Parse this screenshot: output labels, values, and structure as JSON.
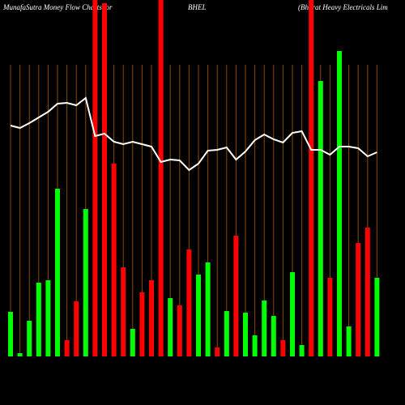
{
  "chart_data": {
    "type": "bar",
    "title": "MunafaSutra  Money Flow  Charts for",
    "symbol": "BHEL",
    "subtitle": "(Bharat Heavy Electricals Lim",
    "background": "#000000",
    "grid_color": "#8b4a00",
    "line_color": "#ffffff",
    "ylim": [
      0,
      440
    ],
    "values": [
      55,
      4,
      44,
      91,
      94,
      207,
      20,
      68,
      182,
      440,
      436,
      238,
      110,
      34,
      79,
      94,
      440,
      72,
      63,
      132,
      101,
      116,
      11,
      56,
      149,
      54,
      26,
      69,
      50,
      20,
      104,
      14,
      440,
      340,
      97,
      377,
      37,
      140,
      159,
      97
    ],
    "colors": [
      "#00ff00",
      "#00ff00",
      "#00ff00",
      "#00ff00",
      "#00ff00",
      "#00ff00",
      "#ff0000",
      "#ff0000",
      "#00ff00",
      "#ff0000",
      "#ff0000",
      "#ff0000",
      "#ff0000",
      "#00ff00",
      "#ff0000",
      "#ff0000",
      "#ff0000",
      "#00ff00",
      "#ff0000",
      "#ff0000",
      "#00ff00",
      "#00ff00",
      "#ff0000",
      "#00ff00",
      "#ff0000",
      "#00ff00",
      "#00ff00",
      "#00ff00",
      "#00ff00",
      "#ff0000",
      "#00ff00",
      "#00ff00",
      "#ff0000",
      "#00ff00",
      "#ff0000",
      "#00ff00",
      "#00ff00",
      "#ff0000",
      "#ff0000",
      "#00ff00"
    ],
    "line_values": [
      285,
      282,
      288,
      295,
      302,
      312,
      313,
      310,
      319,
      272,
      275,
      265,
      262,
      265,
      262,
      259,
      240,
      243,
      242,
      230,
      238,
      254,
      255,
      258,
      243,
      253,
      267,
      274,
      268,
      264,
      276,
      278,
      255,
      255,
      249,
      259,
      259,
      257,
      247,
      252
    ]
  }
}
